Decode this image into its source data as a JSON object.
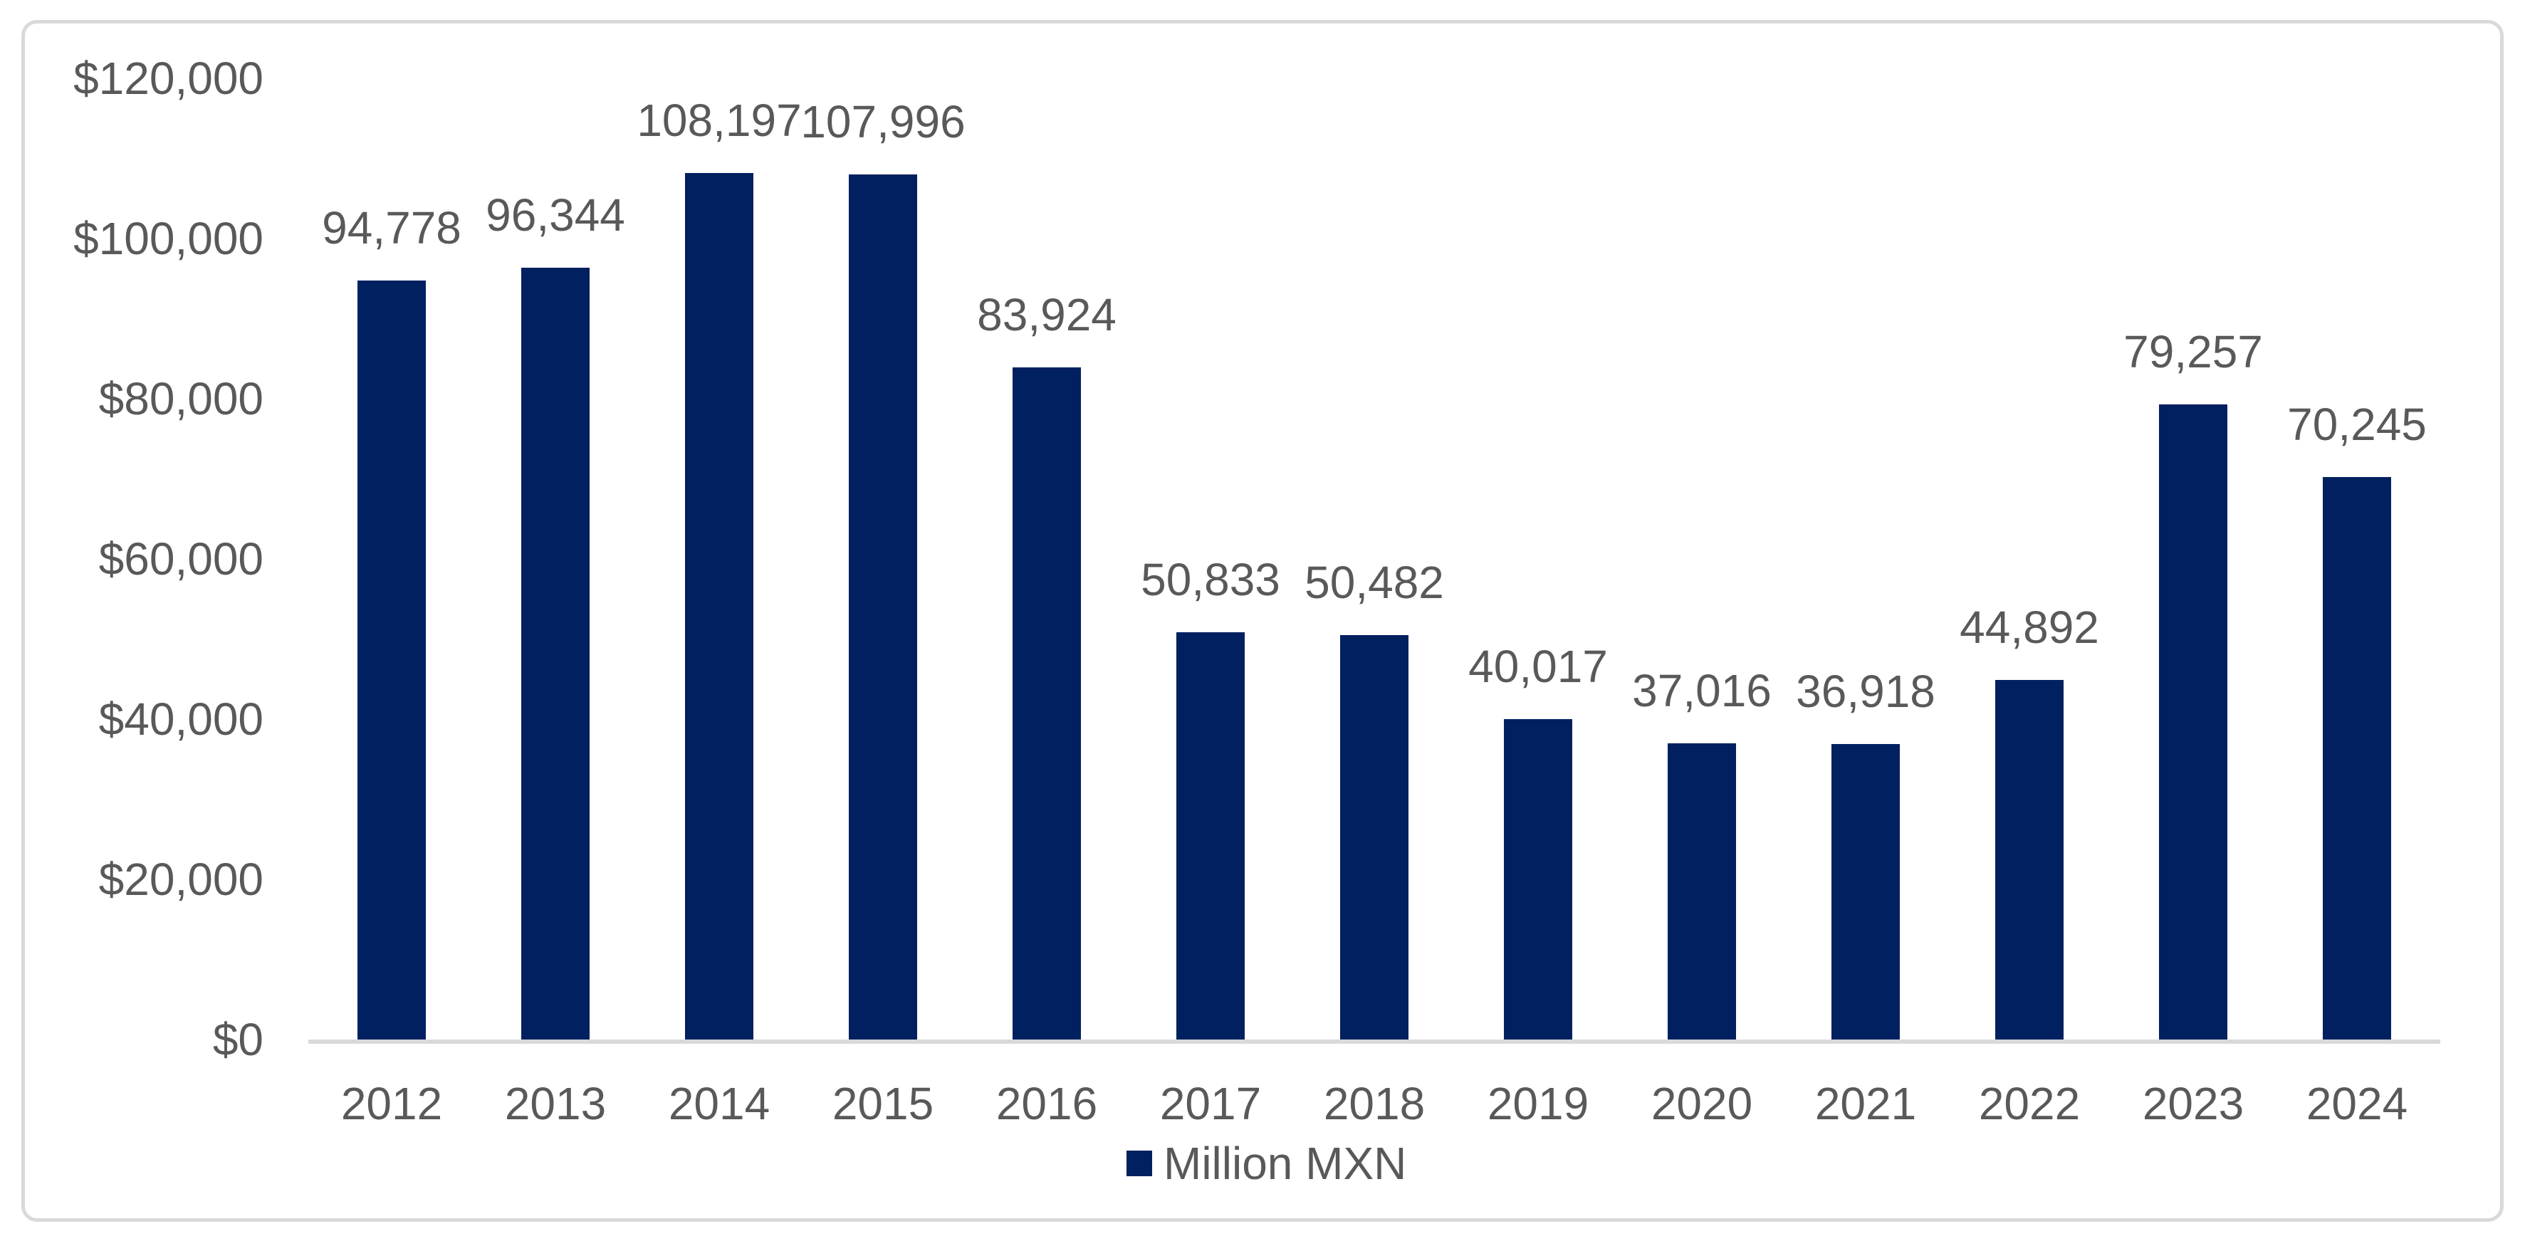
{
  "colors": {
    "bar": "#002060",
    "axis_line": "#D9D9D9",
    "frame_border": "#D9D9D9",
    "label_text": "#595959",
    "background": "#FFFFFF"
  },
  "legend": {
    "label": "Million MXN",
    "swatch_color": "#002060",
    "position": "bottom-center"
  },
  "chart_data": {
    "type": "bar",
    "title": "",
    "xlabel": "",
    "ylabel": "",
    "categories": [
      "2012",
      "2013",
      "2014",
      "2015",
      "2016",
      "2017",
      "2018",
      "2019",
      "2020",
      "2021",
      "2022",
      "2023",
      "2024"
    ],
    "series": [
      {
        "name": "Million MXN",
        "values": [
          94778,
          96344,
          108197,
          107996,
          83924,
          50833,
          50482,
          40017,
          37016,
          36918,
          44892,
          79257,
          70245
        ],
        "labels": [
          "94,778",
          "96,344",
          "108,197",
          "107,996",
          "83,924",
          "50,833",
          "50,482",
          "40,017",
          "37,016",
          "36,918",
          "44,892",
          "79,257",
          "70,245"
        ]
      }
    ],
    "y_ticks": [
      {
        "value": 0,
        "label": "$0"
      },
      {
        "value": 20000,
        "label": "$20,000"
      },
      {
        "value": 40000,
        "label": "$40,000"
      },
      {
        "value": 60000,
        "label": "$60,000"
      },
      {
        "value": 80000,
        "label": "$80,000"
      },
      {
        "value": 100000,
        "label": "$100,000"
      },
      {
        "value": 120000,
        "label": "$120,000"
      }
    ],
    "ylim": [
      0,
      120000
    ],
    "grid": false,
    "data_labels": true,
    "legend_position": "bottom"
  }
}
